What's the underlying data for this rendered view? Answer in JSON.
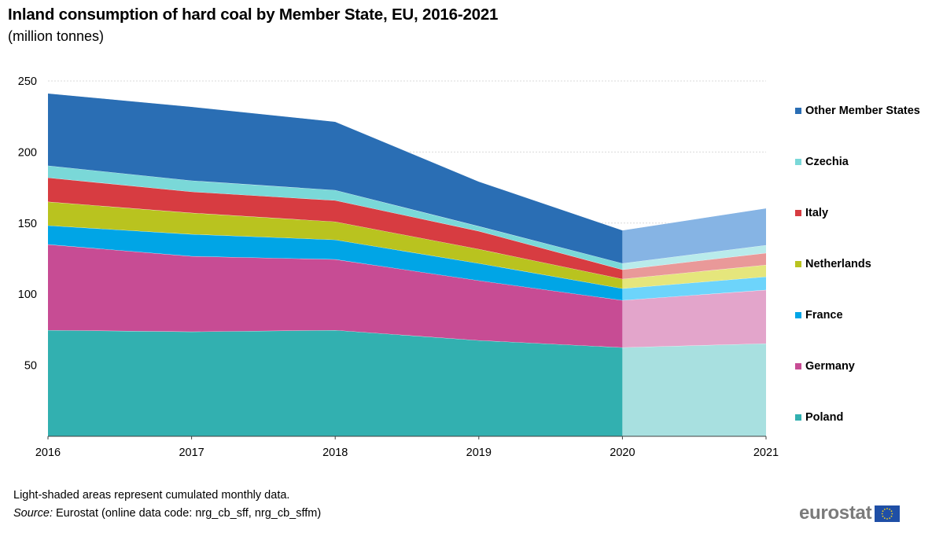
{
  "title": "Inland consumption of hard coal by Member State, EU, 2016-2021",
  "subtitle": "(million tonnes)",
  "note": "Light-shaded areas represent cumulated monthly data.",
  "source_label": "Source:",
  "source_text": " Eurostat (online data code: nrg_cb_sff, nrg_cb_sffm)",
  "logo_text": "eurostat",
  "logo_icon": "eu-flag-icon",
  "chart_data": {
    "type": "area",
    "stacked": true,
    "title": "Inland consumption of hard coal by Member State, EU, 2016-2021",
    "subtitle": "(million tonnes)",
    "xlabel": "",
    "ylabel": "",
    "x": [
      "2016",
      "2017",
      "2018",
      "2019",
      "2020",
      "2021"
    ],
    "ylim": [
      0,
      250
    ],
    "yticks": [
      50,
      100,
      150,
      200,
      250
    ],
    "grid": true,
    "legend_position": "right",
    "light_shaded_from": "2020",
    "series": [
      {
        "name": "Poland",
        "color": "#32b0b0",
        "light_color": "#a8e0e0",
        "values": [
          74.7,
          73.6,
          74.7,
          67.5,
          62.5,
          65.3
        ]
      },
      {
        "name": "Germany",
        "color": "#c74c94",
        "light_color": "#e3a5cb",
        "values": [
          60.3,
          53.1,
          49.8,
          42.1,
          33.2,
          37.7
        ]
      },
      {
        "name": "France",
        "color": "#00a5e6",
        "light_color": "#6dd4fb",
        "values": [
          13.3,
          15.5,
          13.8,
          12.1,
          8.3,
          9.3
        ]
      },
      {
        "name": "Netherlands",
        "color": "#b9c31f",
        "light_color": "#e5e67c",
        "values": [
          16.7,
          15.0,
          12.7,
          10.0,
          6.7,
          8.3
        ]
      },
      {
        "name": "Italy",
        "color": "#d73c41",
        "light_color": "#e99999",
        "values": [
          17.0,
          14.9,
          15.0,
          12.7,
          6.6,
          8.4
        ]
      },
      {
        "name": "Czechia",
        "color": "#7ad8d8",
        "light_color": "#b9ebeb",
        "values": [
          8.4,
          7.8,
          7.2,
          3.4,
          4.4,
          5.5
        ]
      },
      {
        "name": "Other Member States",
        "color": "#2a6eb4",
        "light_color": "#86b4e4",
        "values": [
          50.9,
          52.0,
          48.2,
          31.5,
          23.3,
          26.0
        ]
      }
    ],
    "legend_order": [
      "Other Member States",
      "Czechia",
      "Italy",
      "Netherlands",
      "France",
      "Germany",
      "Poland"
    ]
  }
}
